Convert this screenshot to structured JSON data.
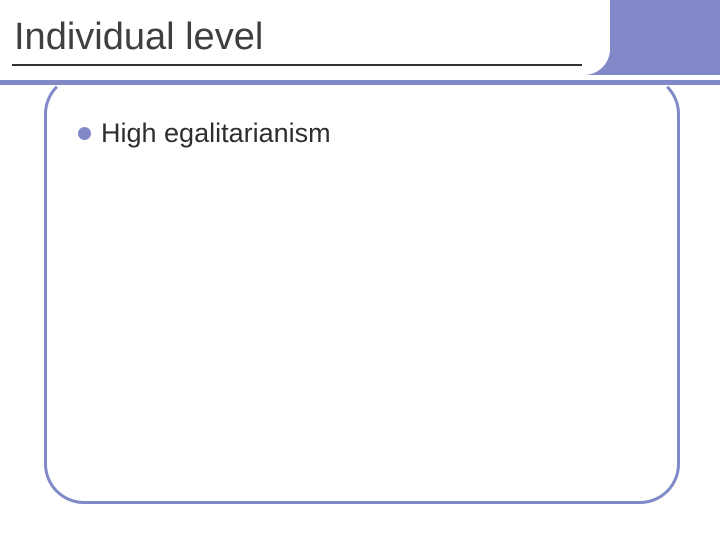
{
  "colors": {
    "accent_purple": "#8189c9",
    "title_text": "#3b3b3b",
    "body_text": "#2e2e2e",
    "underline": "#333333",
    "background": "#ffffff"
  },
  "title": "Individual level",
  "bullets": [
    {
      "text": "High egalitarianism"
    }
  ],
  "layout": {
    "slide_width": 720,
    "slide_height": 540,
    "title_fontsize": 38,
    "bullet_fontsize": 27,
    "bullet_dot_size": 13,
    "frame_border_radius": 40,
    "frame_border_width": 3
  }
}
